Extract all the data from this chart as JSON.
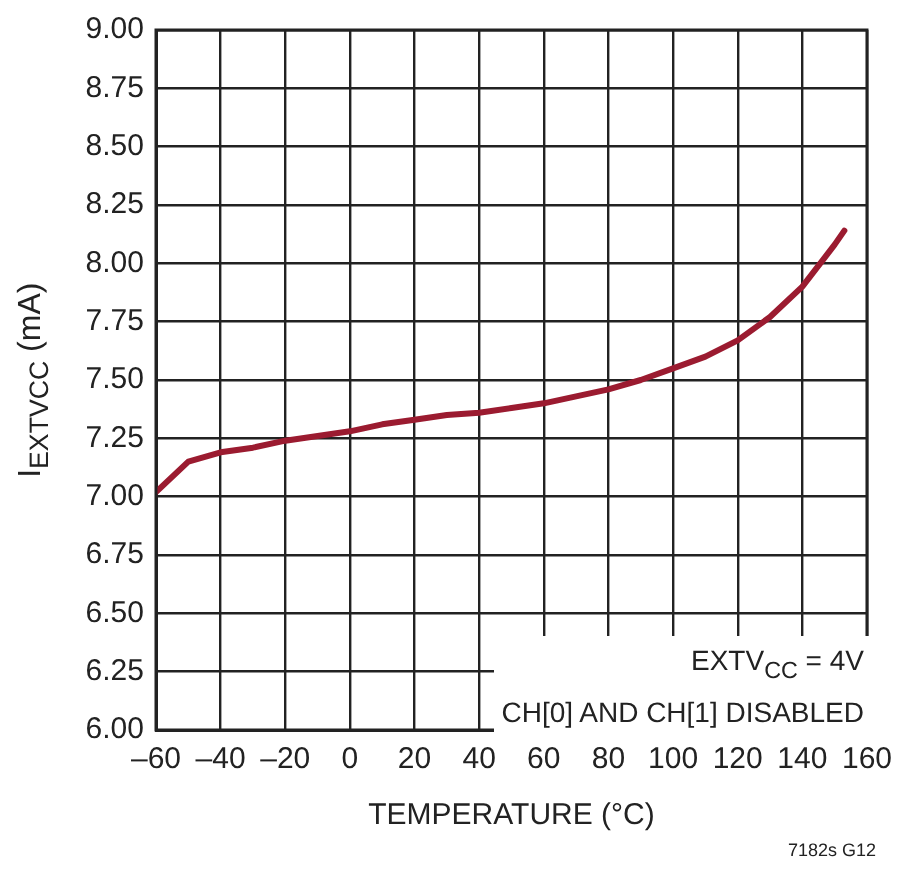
{
  "chart_data": {
    "type": "line",
    "xlabel": "TEMPERATURE (°C)",
    "ylabel": "I$_{EXTVCC}$ (mA)",
    "x": [
      -60,
      -50,
      -40,
      -30,
      -20,
      -10,
      0,
      10,
      20,
      30,
      40,
      50,
      60,
      70,
      80,
      90,
      100,
      110,
      120,
      130,
      140,
      150,
      153
    ],
    "series": [
      {
        "color": "#9b1b30",
        "values": [
          7.02,
          7.15,
          7.19,
          7.21,
          7.24,
          7.26,
          7.28,
          7.31,
          7.33,
          7.35,
          7.36,
          7.38,
          7.4,
          7.43,
          7.46,
          7.5,
          7.55,
          7.6,
          7.67,
          7.77,
          7.9,
          8.08,
          8.14
        ]
      }
    ],
    "xlim": [
      -60,
      160
    ],
    "xticks": [
      {
        "value": -60,
        "label": "–60"
      },
      {
        "value": -40,
        "label": "–40"
      },
      {
        "value": -20,
        "label": "–20"
      },
      0,
      20,
      40,
      60,
      80,
      100,
      120,
      140,
      160
    ],
    "ylim": [
      6,
      9
    ],
    "yticks": [
      {
        "value": 6,
        "label": "6.00"
      },
      {
        "value": 6.25,
        "label": "6.25"
      },
      {
        "value": 6.5,
        "label": "6.50"
      },
      {
        "value": 6.75,
        "label": "6.75"
      },
      {
        "value": 7,
        "label": "7.00"
      },
      {
        "value": 7.25,
        "label": "7.25"
      },
      {
        "value": 7.5,
        "label": "7.50"
      },
      {
        "value": 7.75,
        "label": "7.75"
      },
      {
        "value": 8,
        "label": "8.00"
      },
      {
        "value": 8.25,
        "label": "8.25"
      },
      {
        "value": 8.5,
        "label": "8.50"
      },
      {
        "value": 8.75,
        "label": "8.75"
      },
      {
        "value": 9,
        "label": "9.00"
      }
    ],
    "grid": true,
    "legend": false,
    "marker": "none",
    "line_style": "solid",
    "annotations": [
      "EXTV$_{CC}$ = 4V",
      "CH[0] AND CH[1] DISABLED",
      "7182s G12"
    ]
  }
}
